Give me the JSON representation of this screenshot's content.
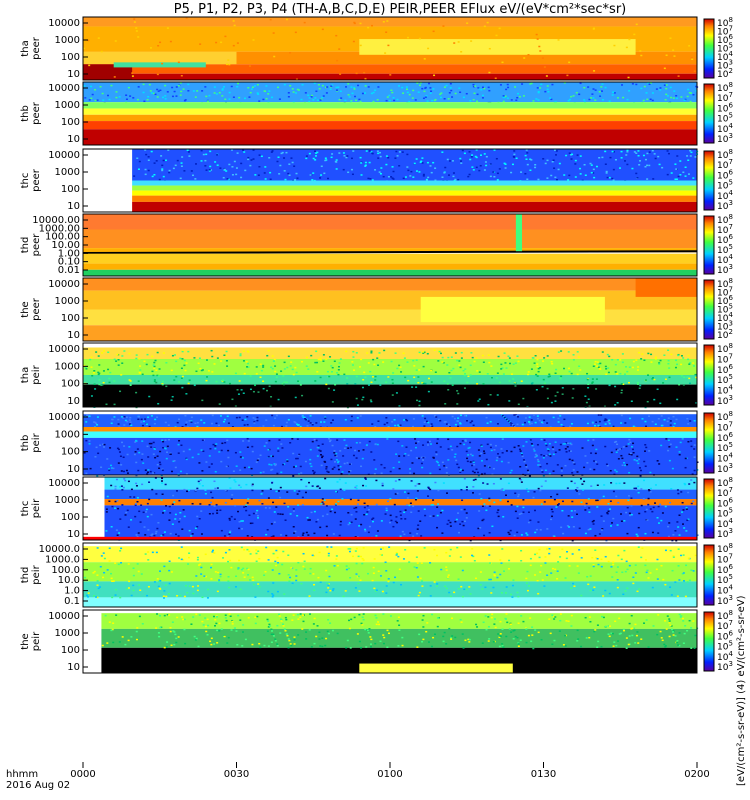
{
  "chart_data": {
    "type": "heatmap",
    "title": "P5, P1, P2, P3, P4 (TH-A,B,C,D,E) PEIR,PEER EFlux eV/(eV*cm²*sec*sr)",
    "colorbar_title": "[eV/(cm²-s-sr-eV)] (4) eV/(cm²-s-sr-eV)",
    "x_axis": {
      "ticks": [
        "0000",
        "0030",
        "0100",
        "0130",
        "0200"
      ],
      "row_label_1": "hhmm",
      "row_label_2": "2016 Aug 02"
    },
    "colorbar_ticks": [
      {
        "base": "10",
        "exp": "8"
      },
      {
        "base": "10",
        "exp": "7"
      },
      {
        "base": "10",
        "exp": "6"
      },
      {
        "base": "10",
        "exp": "5"
      },
      {
        "base": "10",
        "exp": "4"
      },
      {
        "base": "10",
        "exp": "3"
      },
      {
        "base": "10",
        "exp": "2"
      }
    ],
    "panels": [
      {
        "ylabel1": "tha",
        "ylabel2": "peer",
        "yticks": [
          "10000",
          "1000",
          "100",
          "10"
        ],
        "pattern": "peer_a"
      },
      {
        "ylabel1": "thb",
        "ylabel2": "peer",
        "yticks": [
          "10000",
          "1000",
          "100",
          "10"
        ],
        "pattern": "peer_b"
      },
      {
        "ylabel1": "thc",
        "ylabel2": "peer",
        "yticks": [
          "10000",
          "1000",
          "100",
          "10"
        ],
        "pattern": "peer_c"
      },
      {
        "ylabel1": "thd",
        "ylabel2": "peer",
        "yticks": [
          "10000.00",
          "1000.00",
          "100.00",
          "10.00",
          "1.00",
          "0.10",
          "0.01"
        ],
        "pattern": "peer_d"
      },
      {
        "ylabel1": "the",
        "ylabel2": "peer",
        "yticks": [
          "10000",
          "1000",
          "100",
          "10"
        ],
        "pattern": "peer_e"
      },
      {
        "ylabel1": "tha",
        "ylabel2": "peir",
        "yticks": [
          "10000",
          "1000",
          "100",
          "10"
        ],
        "pattern": "peir_a"
      },
      {
        "ylabel1": "thb",
        "ylabel2": "peir",
        "yticks": [
          "10000",
          "1000",
          "100",
          "10"
        ],
        "pattern": "peir_b"
      },
      {
        "ylabel1": "thc",
        "ylabel2": "peir",
        "yticks": [
          "10000",
          "1000",
          "100",
          "10"
        ],
        "pattern": "peir_c"
      },
      {
        "ylabel1": "thd",
        "ylabel2": "peir",
        "yticks": [
          "10000.0",
          "1000.0",
          "100.0",
          "10.0",
          "1.0",
          "0.1"
        ],
        "pattern": "peir_d"
      },
      {
        "ylabel1": "the",
        "ylabel2": "peir",
        "yticks": [
          "10000",
          "1000",
          "100",
          "10"
        ],
        "pattern": "peir_e"
      }
    ]
  }
}
